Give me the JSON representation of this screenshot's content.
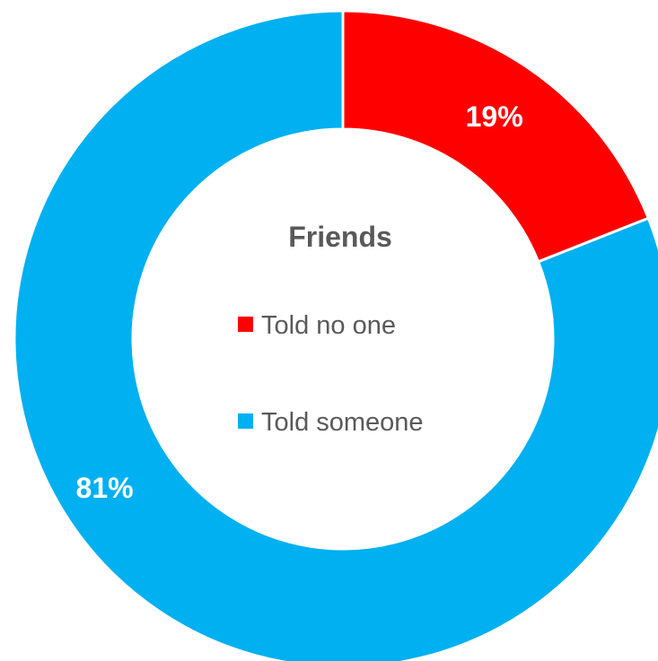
{
  "chart_data": {
    "type": "pie",
    "variant": "donut",
    "title": "Friends",
    "legend_position": "center",
    "series": [
      {
        "label": "Told no one",
        "value": 19,
        "display": "19%",
        "color": "#ff0000"
      },
      {
        "label": "Told someone",
        "value": 81,
        "display": "81%",
        "color": "#00b0f0"
      }
    ]
  }
}
